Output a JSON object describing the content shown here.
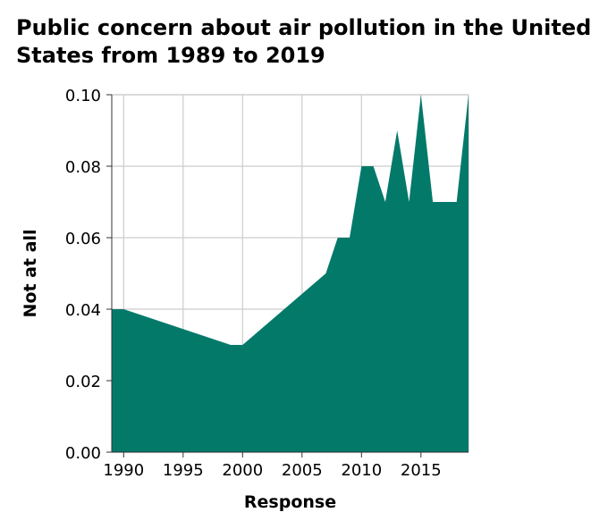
{
  "chart_data": {
    "type": "area",
    "title": "Public concern about air pollution in the United States from 1989 to 2019",
    "xlabel": "Response",
    "ylabel": "Not at all",
    "xlim": [
      1989,
      2019
    ],
    "ylim": [
      0,
      0.1
    ],
    "x_ticks": [
      1990,
      1995,
      2000,
      2005,
      2010,
      2015
    ],
    "y_ticks": [
      "0.00",
      "0.02",
      "0.04",
      "0.06",
      "0.08",
      "0.10"
    ],
    "grid": true,
    "fill_color": "#03796a",
    "grid_color": "#cccccc",
    "series": [
      {
        "x": [
          1989,
          1990,
          1999,
          2000,
          2007,
          2008,
          2009,
          2010,
          2011,
          2012,
          2013,
          2014,
          2015,
          2016,
          2017,
          2018,
          2019
        ],
        "values": [
          0.04,
          0.04,
          0.03,
          0.03,
          0.05,
          0.06,
          0.06,
          0.08,
          0.08,
          0.07,
          0.09,
          0.07,
          0.1,
          0.07,
          0.07,
          0.07,
          0.1
        ]
      }
    ]
  }
}
